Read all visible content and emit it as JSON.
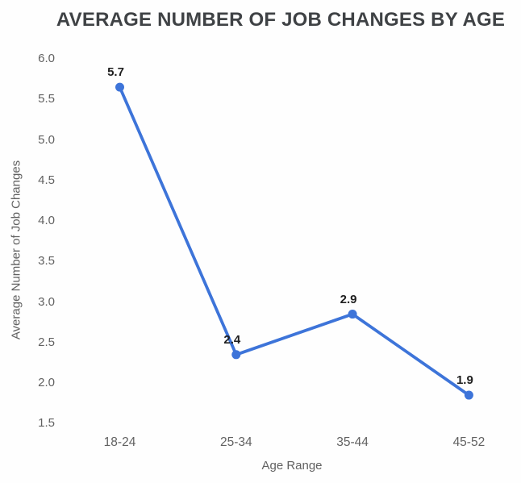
{
  "chart_data": {
    "type": "line",
    "title": "AVERAGE NUMBER OF JOB CHANGES BY AGE",
    "xlabel": "Age Range",
    "ylabel": "Average Number of Job Changes",
    "categories": [
      "18-24",
      "25-34",
      "35-44",
      "45-52"
    ],
    "values": [
      5.7,
      2.4,
      2.9,
      1.9
    ],
    "point_labels": [
      "5.7",
      "2.4",
      "2.9",
      "1.9"
    ],
    "ylim": [
      1.5,
      6.0
    ],
    "ytick_step": 0.5,
    "ytick_labels": [
      "6.0",
      "5.5",
      "5.0",
      "4.5",
      "4.0",
      "3.5",
      "3.0",
      "2.5",
      "2.0",
      "1.5"
    ],
    "grid": false,
    "legend": "none",
    "colors": {
      "line": "#3d74d9",
      "point": "#3d74d9",
      "title": "#3f4245",
      "axis_labels": "#616161",
      "data_labels": "#1f1f1f",
      "background": "#fefefe"
    }
  }
}
